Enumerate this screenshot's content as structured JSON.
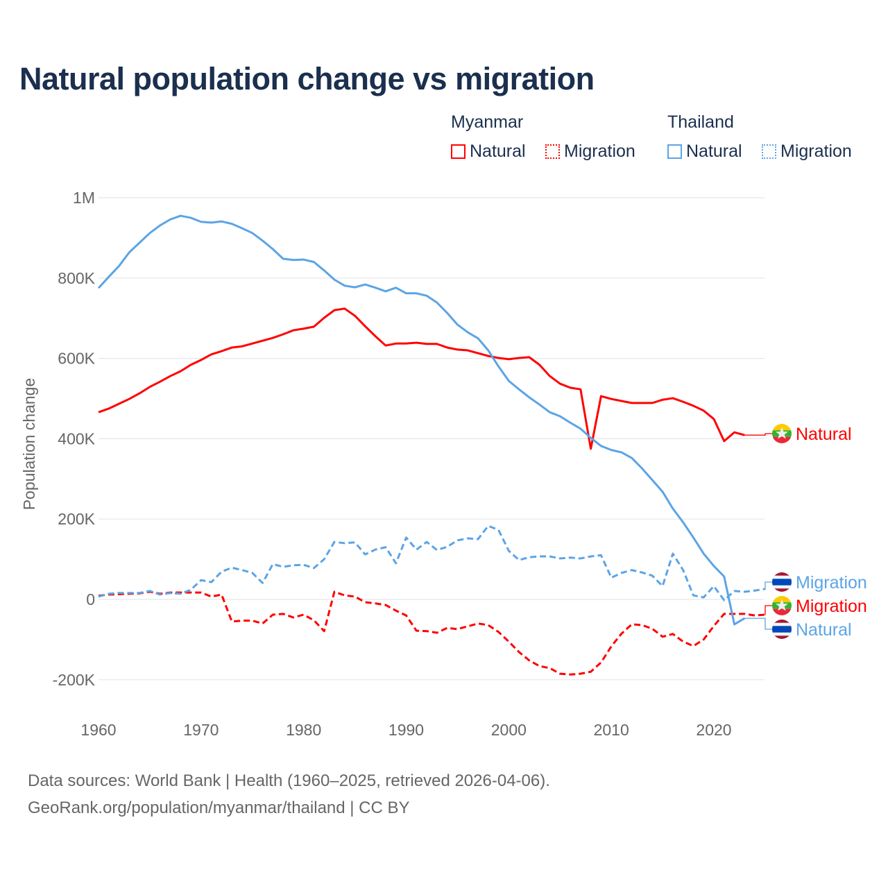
{
  "title": "Natural population change vs migration",
  "legend": {
    "groups": [
      {
        "name": "Myanmar",
        "items": [
          {
            "label": "Natural",
            "color": "#ff0000",
            "style": "solid"
          },
          {
            "label": "Migration",
            "color": "#ff0000",
            "style": "dotted"
          }
        ]
      },
      {
        "name": "Thailand",
        "items": [
          {
            "label": "Natural",
            "color": "#5ba4e6",
            "style": "solid"
          },
          {
            "label": "Migration",
            "color": "#5ba4e6",
            "style": "dotted"
          }
        ]
      }
    ]
  },
  "footer": {
    "line1": "Data sources: World Bank | Health (1960–2025, retrieved 2026-04-06).",
    "line2": "GeoRank.org/population/myanmar/thailand | CC BY"
  },
  "chart_data": {
    "type": "line",
    "title": "Natural population change vs migration",
    "xlabel": "",
    "ylabel": "Population change",
    "xlim": [
      1960,
      2025
    ],
    "ylim": [
      -250000,
      1000000
    ],
    "grid": true,
    "legend_position": "top-right",
    "x_ticks": [
      1960,
      1970,
      1980,
      1990,
      2000,
      2010,
      2020
    ],
    "x_tick_labels": [
      "1960",
      "1970",
      "1980",
      "1990",
      "2000",
      "2010",
      "2020"
    ],
    "y_ticks": [
      -200000,
      0,
      200000,
      400000,
      600000,
      800000,
      1000000
    ],
    "y_tick_labels": [
      "-200K",
      "0",
      "200K",
      "400K",
      "600K",
      "800K",
      "1M"
    ],
    "series": [
      {
        "name": "Myanmar Natural",
        "end_label": "Natural",
        "country": "Myanmar",
        "color": "#ff0000",
        "dash": false,
        "start": 1960,
        "values_k": [
          466,
          475,
          487,
          499,
          513,
          529,
          542,
          556,
          568,
          584,
          596,
          610,
          618,
          627,
          630,
          637,
          644,
          651,
          660,
          670,
          674,
          679,
          701,
          720,
          724,
          706,
          680,
          655,
          632,
          637,
          637,
          639,
          636,
          636,
          627,
          622,
          620,
          613,
          606,
          601,
          598,
          601,
          603,
          584,
          556,
          537,
          527,
          523,
          375,
          506,
          499,
          494,
          489,
          489,
          489,
          497,
          501,
          492,
          482,
          470,
          449,
          394,
          416,
          409
        ]
      },
      {
        "name": "Myanmar Migration",
        "end_label": "Migration",
        "country": "Myanmar",
        "color": "#ff0000",
        "dash": true,
        "start": 1960,
        "values_k": [
          9,
          12,
          13,
          14,
          15,
          19,
          14,
          17,
          17,
          17,
          17,
          7,
          12,
          -55,
          -53,
          -53,
          -60,
          -38,
          -36,
          -45,
          -38,
          -52,
          -79,
          19,
          10,
          7,
          -7,
          -10,
          -14,
          -28,
          -40,
          -78,
          -79,
          -83,
          -71,
          -74,
          -67,
          -60,
          -64,
          -81,
          -105,
          -131,
          -152,
          -166,
          -171,
          -185,
          -187,
          -185,
          -180,
          -157,
          -117,
          -85,
          -62,
          -64,
          -73,
          -93,
          -86,
          -105,
          -116,
          -100,
          -66,
          -36,
          -36,
          -36,
          -40,
          -38
        ]
      },
      {
        "name": "Thailand Natural",
        "end_label": "Natural",
        "country": "Thailand",
        "color": "#5ba4e6",
        "dash": false,
        "start": 1960,
        "values_k": [
          775,
          803,
          830,
          864,
          888,
          912,
          931,
          946,
          955,
          950,
          940,
          938,
          941,
          935,
          924,
          912,
          893,
          872,
          848,
          845,
          846,
          840,
          819,
          796,
          781,
          777,
          784,
          776,
          767,
          776,
          762,
          762,
          756,
          739,
          713,
          684,
          665,
          650,
          620,
          580,
          544,
          523,
          503,
          485,
          466,
          456,
          440,
          425,
          402,
          382,
          372,
          366,
          352,
          326,
          297,
          268,
          226,
          192,
          154,
          114,
          83,
          57,
          -62,
          -47
        ]
      },
      {
        "name": "Thailand Migration",
        "end_label": "Migration",
        "country": "Thailand",
        "color": "#5ba4e6",
        "dash": true,
        "start": 1960,
        "values_k": [
          7,
          14,
          16,
          16,
          16,
          21,
          12,
          16,
          14,
          24,
          48,
          43,
          69,
          79,
          73,
          66,
          41,
          88,
          81,
          85,
          86,
          78,
          100,
          143,
          140,
          142,
          112,
          124,
          130,
          90,
          154,
          124,
          143,
          123,
          131,
          147,
          152,
          150,
          183,
          173,
          121,
          98,
          105,
          107,
          107,
          102,
          104,
          102,
          107,
          110,
          54,
          66,
          73,
          67,
          59,
          33,
          114,
          73,
          10,
          5,
          33,
          -2,
          21,
          19,
          22,
          26
        ]
      }
    ]
  }
}
